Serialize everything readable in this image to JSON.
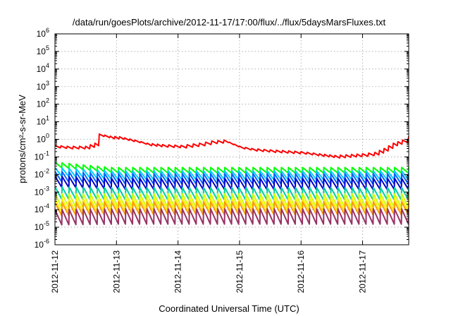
{
  "chart_data": {
    "type": "line",
    "title": "/data/run/goesPlots/archive/2012-11-17/17:00/flux/../flux/5daysMarsFluxes.txt",
    "xlabel": "Coordinated Universal Time (UTC)",
    "ylabel": "protons/cm²-s-sr-MeV",
    "y_scale": "log",
    "ylim_exponents": [
      -6,
      6
    ],
    "ytick_exponents": [
      -6,
      -5,
      -4,
      -3,
      -2,
      -1,
      0,
      1,
      2,
      3,
      4,
      5,
      6
    ],
    "xlim_days": [
      0,
      5.75
    ],
    "xticks": [
      "2012-11-12",
      "2012-11-13",
      "2012-11-14",
      "2012-11-15",
      "2012-11-16",
      "2012-11-17"
    ],
    "grid": true,
    "series": [
      {
        "color": "#ff0000",
        "kind": "envelope",
        "points": [
          [
            0,
            0.45
          ],
          [
            0.2,
            0.4
          ],
          [
            0.5,
            0.4
          ],
          [
            0.65,
            0.6
          ],
          [
            0.72,
            2.0
          ],
          [
            0.9,
            1.5
          ],
          [
            1.05,
            1.4
          ],
          [
            1.3,
            0.9
          ],
          [
            1.5,
            0.6
          ],
          [
            1.75,
            0.5
          ],
          [
            2.05,
            0.45
          ],
          [
            2.35,
            0.6
          ],
          [
            2.55,
            0.8
          ],
          [
            2.75,
            0.9
          ],
          [
            3.0,
            0.4
          ],
          [
            3.2,
            0.3
          ],
          [
            3.5,
            0.25
          ],
          [
            3.8,
            0.22
          ],
          [
            4.0,
            0.2
          ],
          [
            4.3,
            0.15
          ],
          [
            4.55,
            0.12
          ],
          [
            5.0,
            0.15
          ],
          [
            5.2,
            0.18
          ],
          [
            5.35,
            0.3
          ],
          [
            5.5,
            0.6
          ],
          [
            5.65,
            0.9
          ],
          [
            5.75,
            1.5
          ]
        ]
      },
      {
        "color": "#00ff00",
        "kind": "sawtooth",
        "start": 0.05,
        "peak": 0.025,
        "trough": 0.012
      },
      {
        "color": "#00ccff",
        "kind": "sawtooth",
        "start": 0.025,
        "peak": 0.016,
        "trough": 0.005
      },
      {
        "color": "#0066ff",
        "kind": "sawtooth",
        "start": 0.015,
        "peak": 0.011,
        "trough": 0.0028
      },
      {
        "color": "#0000cc",
        "kind": "sawtooth",
        "start": 0.008,
        "peak": 0.006,
        "trough": 0.0014
      },
      {
        "color": "#00d0a0",
        "kind": "sawtooth",
        "start": 0.002,
        "peak": 0.0018,
        "trough": 0.00035
      },
      {
        "color": "#ccff00",
        "kind": "sawtooth",
        "start": 0.0008,
        "peak": 0.0008,
        "trough": 0.00013
      },
      {
        "color": "#ffee00",
        "kind": "sawtooth",
        "start": 0.0004,
        "peak": 0.00045,
        "trough": 8e-05
      },
      {
        "color": "#ff9900",
        "kind": "sawtooth",
        "start": 0.00025,
        "peak": 0.00028,
        "trough": 5e-05
      },
      {
        "color": "#993366",
        "kind": "sawtooth",
        "start": 0.0001,
        "peak": 0.00011,
        "trough": 1.5e-05
      }
    ]
  }
}
